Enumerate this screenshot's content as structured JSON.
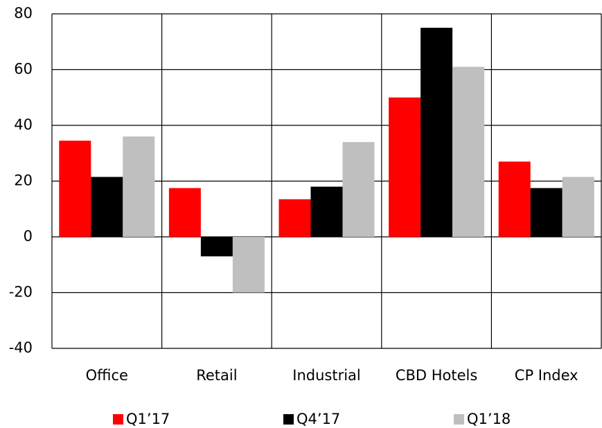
{
  "chart_data": {
    "type": "bar",
    "categories": [
      "Office",
      "Retail",
      "Industrial",
      "CBD Hotels",
      "CP Index"
    ],
    "series": [
      {
        "name": "Q1’17",
        "color": "#ff0000",
        "values": [
          34.5,
          17.5,
          13.5,
          50,
          27
        ]
      },
      {
        "name": "Q4’17",
        "color": "#000000",
        "values": [
          21.5,
          -7,
          18,
          75,
          17.5
        ]
      },
      {
        "name": "Q1’18",
        "color": "#bfbfbf",
        "values": [
          36,
          -20,
          34,
          61,
          21.5
        ]
      }
    ],
    "ylim": [
      -40,
      80
    ],
    "yticks": [
      -40,
      -20,
      0,
      20,
      40,
      60,
      80
    ],
    "grid": true,
    "legend": "bottom"
  }
}
